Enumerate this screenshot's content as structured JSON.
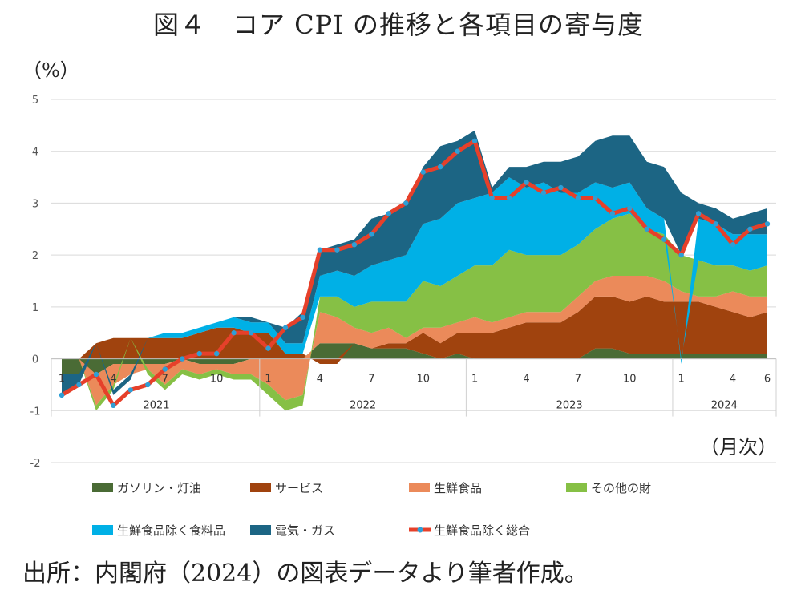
{
  "title": "図４　コア CPI の推移と各項目の寄与度",
  "y_unit": "（%）",
  "x_unit": "（月次）",
  "source": "出所：内閣府（2024）の図表データより筆者作成。",
  "colors": {
    "gasoline": "#4a6b35",
    "service": "#a0430e",
    "fresh_food": "#eb8a5a",
    "other_goods": "#86c045",
    "food_excl_fresh": "#00b0e6",
    "electricity_gas": "#1c6584",
    "core_line": "#e6402a",
    "core_marker": "#2e9fd6",
    "grid": "#d9d9d9"
  },
  "chart_data": {
    "type": "area",
    "stacked": true,
    "ylim": [
      -2,
      5
    ],
    "yticks": [
      -2,
      -1,
      0,
      1,
      2,
      3,
      4,
      5
    ],
    "x": [
      "2021-01",
      "2021-02",
      "2021-03",
      "2021-04",
      "2021-05",
      "2021-06",
      "2021-07",
      "2021-08",
      "2021-09",
      "2021-10",
      "2021-11",
      "2021-12",
      "2022-01",
      "2022-02",
      "2022-03",
      "2022-04",
      "2022-05",
      "2022-06",
      "2022-07",
      "2022-08",
      "2022-09",
      "2022-10",
      "2022-11",
      "2022-12",
      "2023-01",
      "2023-02",
      "2023-03",
      "2023-04",
      "2023-05",
      "2023-06",
      "2023-07",
      "2023-08",
      "2023-09",
      "2023-10",
      "2023-11",
      "2023-12",
      "2024-01",
      "2024-02",
      "2024-03",
      "2024-04",
      "2024-05",
      "2024-06"
    ],
    "month_tick_labels": [
      {
        "i": 0,
        "label": "1"
      },
      {
        "i": 3,
        "label": "4"
      },
      {
        "i": 6,
        "label": "7"
      },
      {
        "i": 9,
        "label": "10"
      },
      {
        "i": 12,
        "label": "1"
      },
      {
        "i": 15,
        "label": "4"
      },
      {
        "i": 18,
        "label": "7"
      },
      {
        "i": 21,
        "label": "10"
      },
      {
        "i": 24,
        "label": "1"
      },
      {
        "i": 27,
        "label": "4"
      },
      {
        "i": 30,
        "label": "7"
      },
      {
        "i": 33,
        "label": "10"
      },
      {
        "i": 36,
        "label": "1"
      },
      {
        "i": 39,
        "label": "4"
      },
      {
        "i": 41,
        "label": "6"
      }
    ],
    "year_labels": [
      {
        "label": "2021",
        "start": 0,
        "end": 11
      },
      {
        "label": "2022",
        "start": 12,
        "end": 23
      },
      {
        "label": "2023",
        "start": 24,
        "end": 35
      },
      {
        "label": "2024",
        "start": 36,
        "end": 41
      }
    ],
    "series": [
      {
        "name": "ガソリン・灯油",
        "key": "gasoline",
        "values": [
          -0.3,
          -0.3,
          -0.3,
          -0.1,
          -0.1,
          -0.1,
          -0.1,
          0,
          -0.1,
          -0.1,
          -0.1,
          0,
          0,
          0,
          0,
          0.3,
          0.3,
          0.3,
          0.2,
          0.2,
          0.2,
          0.1,
          0,
          0.1,
          0,
          0,
          0,
          0,
          0,
          0,
          0,
          0.2,
          0.2,
          0.1,
          0.1,
          0.1,
          0.1,
          0.1,
          0.1,
          0.1,
          0.1,
          0.1
        ]
      },
      {
        "name": "サービス",
        "key": "service",
        "values": [
          0,
          0,
          0.3,
          0.4,
          0.4,
          0.4,
          0.4,
          0.4,
          0.5,
          0.6,
          0.6,
          0.5,
          0.5,
          0.1,
          0.1,
          -0.1,
          -0.1,
          0,
          0,
          0.1,
          0.1,
          0.4,
          0.3,
          0.4,
          0.5,
          0.5,
          0.6,
          0.7,
          0.7,
          0.7,
          0.9,
          1,
          1,
          1,
          1.1,
          1,
          1,
          1,
          0.9,
          0.8,
          0.7,
          0.8
        ]
      },
      {
        "name": "生鮮食品",
        "key": "fresh_food",
        "values": [
          0,
          0,
          -0.6,
          -0.4,
          -0.2,
          -0.1,
          -0.4,
          -0.2,
          -0.2,
          -0.1,
          -0.2,
          -0.3,
          -0.5,
          -0.8,
          -0.7,
          0.6,
          0.5,
          0.3,
          0.3,
          0.3,
          0.1,
          0.1,
          0.3,
          0.2,
          0.3,
          0.2,
          0.2,
          0.2,
          0.2,
          0.2,
          0.3,
          0.3,
          0.4,
          0.5,
          0.4,
          0.4,
          0.2,
          0.1,
          0.2,
          0.4,
          0.4,
          0.3
        ]
      },
      {
        "name": "その他の財",
        "key": "other_goods",
        "values": [
          0,
          0,
          -0.1,
          -0.1,
          0,
          -0.1,
          -0.1,
          -0.1,
          -0.1,
          -0.1,
          -0.1,
          -0.1,
          -0.2,
          -0.2,
          -0.2,
          0.3,
          0.4,
          0.4,
          0.6,
          0.5,
          0.7,
          0.9,
          0.8,
          0.9,
          1,
          1.1,
          1.3,
          1.1,
          1.1,
          1.1,
          1,
          1,
          1.1,
          1.2,
          0.9,
          0.9,
          0.7,
          0.7,
          0.6,
          0.5,
          0.5,
          0.6
        ]
      },
      {
        "name": "生鮮食品除く食料品",
        "key": "food_excl_fresh",
        "values": [
          0,
          0,
          0,
          0,
          0,
          0,
          0.1,
          0.1,
          0.1,
          0.1,
          0.2,
          0.2,
          0.2,
          0.2,
          0.2,
          0.4,
          0.5,
          0.6,
          0.7,
          0.8,
          0.9,
          1.1,
          1.3,
          1.4,
          1.3,
          1.4,
          1.4,
          1.3,
          1.4,
          1.2,
          1,
          0.9,
          0.6,
          0.6,
          0.4,
          0.3,
          -0.1,
          0.8,
          0.8,
          0.6,
          0.7,
          0.6
        ]
      },
      {
        "name": "電気・ガス",
        "key": "electricity_gas",
        "values": [
          -0.4,
          -0.2,
          0,
          -0.1,
          -0.1,
          0,
          0,
          0,
          0,
          0,
          0,
          0.1,
          0,
          0.3,
          0.6,
          0.5,
          0.5,
          0.7,
          0.9,
          0.9,
          1,
          1.1,
          1.4,
          1.2,
          1.3,
          0.1,
          0.2,
          0.4,
          0.4,
          0.6,
          0.7,
          0.8,
          1,
          0.9,
          0.9,
          1,
          1.2,
          0.3,
          0.3,
          0.3,
          0.4,
          0.5
        ]
      }
    ],
    "line": {
      "name": "生鮮食品除く総合",
      "values": [
        -0.7,
        -0.5,
        -0.3,
        -0.9,
        -0.6,
        -0.5,
        -0.2,
        0,
        0.1,
        0.1,
        0.5,
        0.5,
        0.2,
        0.6,
        0.8,
        2.1,
        2.1,
        2.2,
        2.4,
        2.8,
        3,
        3.6,
        3.7,
        4,
        4.2,
        3.1,
        3.1,
        3.4,
        3.2,
        3.3,
        3.1,
        3.1,
        2.8,
        2.9,
        2.5,
        2.3,
        2,
        2.8,
        2.6,
        2.2,
        2.5,
        2.6
      ]
    },
    "legend_position": "bottom"
  }
}
